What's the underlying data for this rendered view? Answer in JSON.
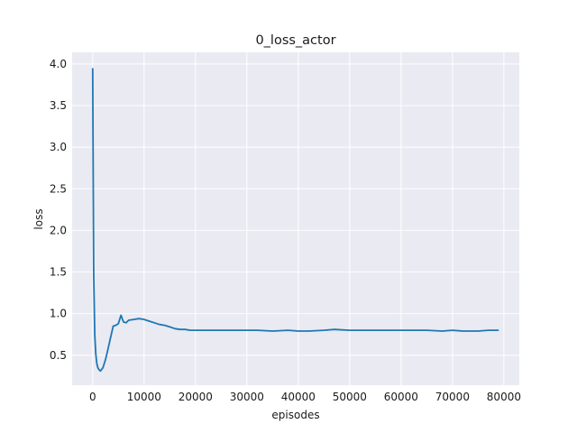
{
  "chart_data": {
    "type": "line",
    "title": "0_loss_actor",
    "xlabel": "episodes",
    "ylabel": "loss",
    "xlim": [
      -4000,
      83000
    ],
    "ylim": [
      0.14,
      4.14
    ],
    "xticks": [
      0,
      10000,
      20000,
      30000,
      40000,
      50000,
      60000,
      70000,
      80000
    ],
    "yticks": [
      0.5,
      1.0,
      1.5,
      2.0,
      2.5,
      3.0,
      3.5,
      4.0
    ],
    "ytick_labels": [
      "0.5",
      "1.0",
      "1.5",
      "2.0",
      "2.5",
      "3.0",
      "3.5",
      "4.0"
    ],
    "grid": true,
    "legend": "none",
    "colors": {
      "line": "#1f77b4",
      "plot_bg": "#eaeaf2",
      "grid": "#ffffff"
    },
    "series": [
      {
        "x": [
          0,
          200,
          400,
          600,
          800,
          1000,
          1200,
          1500,
          2000,
          2500,
          3000,
          3500,
          4000,
          4500,
          5000,
          5500,
          6000,
          6500,
          7000,
          8000,
          9000,
          10000,
          11000,
          12000,
          13000,
          14000,
          15000,
          16000,
          17000,
          18000,
          19000,
          20000,
          22000,
          25000,
          28000,
          30000,
          32000,
          35000,
          38000,
          40000,
          42000,
          45000,
          47000,
          50000,
          53000,
          55000,
          57000,
          60000,
          62000,
          65000,
          68000,
          70000,
          72000,
          75000,
          77000,
          79000
        ],
        "y": [
          3.95,
          1.5,
          0.75,
          0.52,
          0.4,
          0.35,
          0.33,
          0.31,
          0.35,
          0.45,
          0.58,
          0.72,
          0.85,
          0.86,
          0.88,
          0.98,
          0.9,
          0.89,
          0.92,
          0.93,
          0.94,
          0.93,
          0.91,
          0.89,
          0.87,
          0.86,
          0.84,
          0.82,
          0.81,
          0.81,
          0.8,
          0.8,
          0.8,
          0.8,
          0.8,
          0.8,
          0.8,
          0.79,
          0.8,
          0.79,
          0.79,
          0.8,
          0.81,
          0.8,
          0.8,
          0.8,
          0.8,
          0.8,
          0.8,
          0.8,
          0.79,
          0.8,
          0.79,
          0.79,
          0.8,
          0.8
        ]
      }
    ]
  }
}
